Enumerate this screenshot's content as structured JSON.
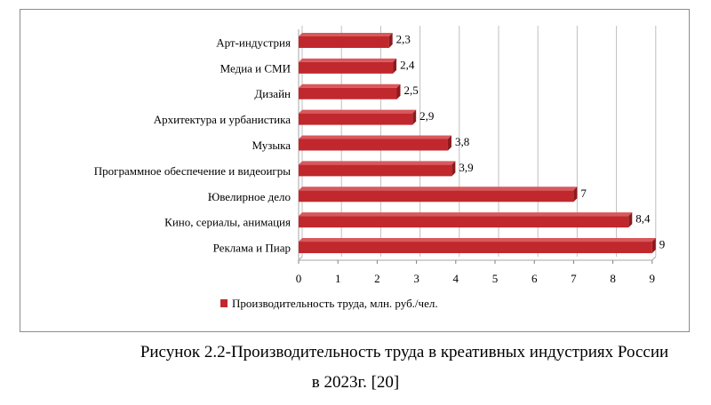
{
  "chart_data": {
    "type": "bar",
    "orientation": "horizontal",
    "categories": [
      "Арт-индустрия",
      "Медиа и СМИ",
      "Дизайн",
      "Архитектура и урбанистика",
      "Музыка",
      "Программное обеспечение и видеоигры",
      "Ювелирное дело",
      "Кино, сериалы, анимация",
      "Реклама и Пиар"
    ],
    "series": [
      {
        "name": "Производительность труда, млн. руб./чел.",
        "values": [
          2.3,
          2.4,
          2.5,
          2.9,
          3.8,
          3.9,
          7,
          8.4,
          9
        ],
        "value_labels": [
          "2,3",
          "2,4",
          "2,5",
          "2,9",
          "3,8",
          "3,9",
          "7",
          "8,4",
          "9"
        ],
        "color": "#c0282d"
      }
    ],
    "xlim": [
      0,
      9
    ],
    "xticks": [
      "0",
      "1",
      "2",
      "3",
      "4",
      "5",
      "6",
      "7",
      "8",
      "9"
    ],
    "grid": true,
    "legend": "bottom"
  },
  "caption": {
    "line1": "Рисунок 2.2-Производительность труда в креативных индустриях России",
    "line2": "в 2023г. [20]"
  }
}
